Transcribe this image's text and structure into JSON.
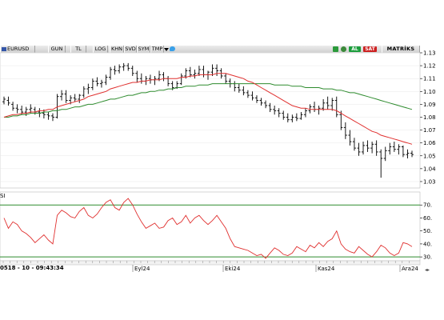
{
  "toolbar": {
    "symbol": "EURUSD",
    "buttons": [
      "GUN",
      "TL",
      "LOG",
      "KHN",
      "SVD",
      "SYM",
      "TMP"
    ],
    "al": "AL",
    "sat": "SAT",
    "matriks": "MATRİKS",
    "colors": {
      "al": "#1b9d3c",
      "sat": "#cc1f1f",
      "toolbar": "#dcdcdc"
    }
  },
  "status": {
    "text": "0518 - 10 - 09:43:34",
    "months": [
      "Eyl24",
      "Eki24",
      "Kas24",
      "Ara24"
    ]
  },
  "chart_data": [
    {
      "type": "line",
      "subtype": "ohlc-bars",
      "ylim": [
        1.025,
        1.13
      ],
      "yticks": [
        "1.13",
        "1.12",
        "1.11",
        "1.10",
        "1.09",
        "1.08",
        "1.07",
        "1.06",
        "1.05",
        "1.04",
        "1.03"
      ],
      "colors": {
        "bars": "#000000",
        "short_ma": "#e0302f",
        "long_ma": "#2e8b2e",
        "grid": "#e8e8e8"
      },
      "bars": [
        [
          1.092,
          1.096,
          1.09,
          1.094
        ],
        [
          1.093,
          1.096,
          1.089,
          1.091
        ],
        [
          1.09,
          1.092,
          1.085,
          1.087
        ],
        [
          1.087,
          1.09,
          1.083,
          1.086
        ],
        [
          1.086,
          1.089,
          1.082,
          1.084
        ],
        [
          1.084,
          1.088,
          1.081,
          1.086
        ],
        [
          1.086,
          1.09,
          1.083,
          1.087
        ],
        [
          1.086,
          1.088,
          1.082,
          1.084
        ],
        [
          1.084,
          1.087,
          1.08,
          1.083
        ],
        [
          1.083,
          1.086,
          1.079,
          1.082
        ],
        [
          1.082,
          1.084,
          1.078,
          1.081
        ],
        [
          1.081,
          1.083,
          1.077,
          1.08
        ],
        [
          1.08,
          1.098,
          1.079,
          1.096
        ],
        [
          1.096,
          1.101,
          1.093,
          1.098
        ],
        [
          1.098,
          1.101,
          1.091,
          1.093
        ],
        [
          1.093,
          1.097,
          1.09,
          1.095
        ],
        [
          1.095,
          1.098,
          1.092,
          1.094
        ],
        [
          1.094,
          1.098,
          1.091,
          1.097
        ],
        [
          1.097,
          1.104,
          1.095,
          1.102
        ],
        [
          1.102,
          1.106,
          1.098,
          1.103
        ],
        [
          1.103,
          1.11,
          1.101,
          1.108
        ],
        [
          1.108,
          1.111,
          1.104,
          1.106
        ],
        [
          1.106,
          1.109,
          1.103,
          1.107
        ],
        [
          1.107,
          1.113,
          1.105,
          1.111
        ],
        [
          1.111,
          1.119,
          1.109,
          1.117
        ],
        [
          1.117,
          1.12,
          1.113,
          1.116
        ],
        [
          1.116,
          1.121,
          1.114,
          1.119
        ],
        [
          1.119,
          1.122,
          1.116,
          1.12
        ],
        [
          1.12,
          1.122,
          1.116,
          1.118
        ],
        [
          1.118,
          1.12,
          1.112,
          1.114
        ],
        [
          1.114,
          1.116,
          1.107,
          1.11
        ],
        [
          1.11,
          1.114,
          1.106,
          1.108
        ],
        [
          1.108,
          1.112,
          1.105,
          1.11
        ],
        [
          1.11,
          1.113,
          1.106,
          1.109
        ],
        [
          1.109,
          1.112,
          1.105,
          1.11
        ],
        [
          1.11,
          1.116,
          1.108,
          1.113
        ],
        [
          1.113,
          1.115,
          1.108,
          1.11
        ],
        [
          1.11,
          1.112,
          1.104,
          1.106
        ],
        [
          1.106,
          1.108,
          1.101,
          1.103
        ],
        [
          1.103,
          1.108,
          1.102,
          1.106
        ],
        [
          1.106,
          1.114,
          1.105,
          1.112
        ],
        [
          1.112,
          1.118,
          1.11,
          1.116
        ],
        [
          1.116,
          1.119,
          1.111,
          1.113
        ],
        [
          1.113,
          1.117,
          1.11,
          1.114
        ],
        [
          1.114,
          1.12,
          1.112,
          1.117
        ],
        [
          1.117,
          1.12,
          1.111,
          1.113
        ],
        [
          1.113,
          1.116,
          1.109,
          1.115
        ],
        [
          1.115,
          1.121,
          1.112,
          1.118
        ],
        [
          1.118,
          1.121,
          1.112,
          1.116
        ],
        [
          1.116,
          1.118,
          1.11,
          1.112
        ],
        [
          1.112,
          1.114,
          1.106,
          1.108
        ],
        [
          1.108,
          1.11,
          1.103,
          1.106
        ],
        [
          1.106,
          1.108,
          1.1,
          1.103
        ],
        [
          1.103,
          1.106,
          1.099,
          1.101
        ],
        [
          1.101,
          1.104,
          1.097,
          1.099
        ],
        [
          1.099,
          1.101,
          1.095,
          1.097
        ],
        [
          1.097,
          1.1,
          1.093,
          1.095
        ],
        [
          1.095,
          1.097,
          1.091,
          1.093
        ],
        [
          1.093,
          1.095,
          1.089,
          1.091
        ],
        [
          1.091,
          1.093,
          1.087,
          1.089
        ],
        [
          1.089,
          1.091,
          1.084,
          1.086
        ],
        [
          1.086,
          1.089,
          1.082,
          1.085
        ],
        [
          1.085,
          1.087,
          1.08,
          1.083
        ],
        [
          1.083,
          1.085,
          1.078,
          1.08
        ],
        [
          1.08,
          1.083,
          1.076,
          1.078
        ],
        [
          1.078,
          1.082,
          1.076,
          1.08
        ],
        [
          1.08,
          1.083,
          1.077,
          1.079
        ],
        [
          1.079,
          1.084,
          1.078,
          1.082
        ],
        [
          1.082,
          1.087,
          1.08,
          1.085
        ],
        [
          1.085,
          1.09,
          1.083,
          1.088
        ],
        [
          1.088,
          1.092,
          1.084,
          1.086
        ],
        [
          1.086,
          1.089,
          1.082,
          1.087
        ],
        [
          1.087,
          1.094,
          1.085,
          1.091
        ],
        [
          1.091,
          1.096,
          1.086,
          1.089
        ],
        [
          1.089,
          1.095,
          1.085,
          1.093
        ],
        [
          1.093,
          1.096,
          1.08,
          1.082
        ],
        [
          1.082,
          1.085,
          1.07,
          1.072
        ],
        [
          1.072,
          1.076,
          1.063,
          1.066
        ],
        [
          1.066,
          1.07,
          1.058,
          1.061
        ],
        [
          1.061,
          1.064,
          1.054,
          1.056
        ],
        [
          1.056,
          1.06,
          1.05,
          1.053
        ],
        [
          1.053,
          1.061,
          1.051,
          1.058
        ],
        [
          1.058,
          1.062,
          1.053,
          1.056
        ],
        [
          1.056,
          1.061,
          1.052,
          1.059
        ],
        [
          1.059,
          1.062,
          1.05,
          1.053
        ],
        [
          1.053,
          1.055,
          1.033,
          1.048
        ],
        [
          1.048,
          1.057,
          1.046,
          1.054
        ],
        [
          1.054,
          1.06,
          1.051,
          1.057
        ],
        [
          1.057,
          1.061,
          1.053,
          1.055
        ],
        [
          1.055,
          1.059,
          1.051,
          1.057
        ],
        [
          1.057,
          1.058,
          1.049,
          1.051
        ],
        [
          1.051,
          1.055,
          1.048,
          1.052
        ],
        [
          1.052,
          1.054,
          1.049,
          1.051
        ]
      ],
      "ma_short": [
        1.08,
        1.081,
        1.082,
        1.082,
        1.083,
        1.083,
        1.084,
        1.084,
        1.085,
        1.085,
        1.086,
        1.086,
        1.088,
        1.089,
        1.09,
        1.091,
        1.092,
        1.093,
        1.094,
        1.096,
        1.097,
        1.098,
        1.099,
        1.1,
        1.102,
        1.103,
        1.104,
        1.105,
        1.106,
        1.107,
        1.107,
        1.108,
        1.108,
        1.109,
        1.109,
        1.109,
        1.11,
        1.11,
        1.11,
        1.11,
        1.111,
        1.111,
        1.112,
        1.112,
        1.113,
        1.113,
        1.113,
        1.113,
        1.114,
        1.114,
        1.114,
        1.113,
        1.112,
        1.111,
        1.11,
        1.108,
        1.107,
        1.105,
        1.103,
        1.101,
        1.099,
        1.097,
        1.095,
        1.093,
        1.091,
        1.089,
        1.088,
        1.087,
        1.087,
        1.086,
        1.086,
        1.086,
        1.086,
        1.086,
        1.086,
        1.085,
        1.083,
        1.081,
        1.079,
        1.077,
        1.075,
        1.073,
        1.071,
        1.069,
        1.068,
        1.066,
        1.065,
        1.064,
        1.063,
        1.062,
        1.061,
        1.06,
        1.059
      ],
      "ma_long": [
        1.08,
        1.08,
        1.081,
        1.081,
        1.082,
        1.082,
        1.083,
        1.083,
        1.083,
        1.084,
        1.084,
        1.085,
        1.085,
        1.086,
        1.086,
        1.087,
        1.088,
        1.088,
        1.089,
        1.09,
        1.09,
        1.091,
        1.092,
        1.093,
        1.094,
        1.094,
        1.095,
        1.096,
        1.097,
        1.097,
        1.098,
        1.099,
        1.099,
        1.1,
        1.1,
        1.101,
        1.101,
        1.102,
        1.102,
        1.103,
        1.103,
        1.104,
        1.104,
        1.104,
        1.105,
        1.105,
        1.105,
        1.106,
        1.106,
        1.106,
        1.106,
        1.106,
        1.106,
        1.106,
        1.106,
        1.106,
        1.106,
        1.106,
        1.106,
        1.106,
        1.106,
        1.105,
        1.105,
        1.105,
        1.105,
        1.104,
        1.104,
        1.104,
        1.103,
        1.103,
        1.103,
        1.103,
        1.102,
        1.102,
        1.102,
        1.101,
        1.101,
        1.1,
        1.099,
        1.099,
        1.098,
        1.097,
        1.096,
        1.095,
        1.094,
        1.093,
        1.092,
        1.091,
        1.09,
        1.089,
        1.088,
        1.087,
        1.086
      ]
    },
    {
      "type": "line",
      "title": "SI",
      "ylim": [
        27,
        80
      ],
      "yticks": [
        "70.",
        "60.",
        "50.",
        "40.",
        "30."
      ],
      "levels": [
        70,
        30
      ],
      "colors": {
        "line": "#e0302f",
        "levels": "#2e8b2e"
      },
      "values": [
        60,
        52,
        57,
        55,
        50,
        48,
        45,
        41,
        44,
        47,
        43,
        40,
        62,
        66,
        64,
        61,
        60,
        65,
        68,
        62,
        60,
        63,
        68,
        72,
        74,
        68,
        66,
        72,
        75,
        70,
        63,
        57,
        52,
        54,
        56,
        52,
        53,
        58,
        60,
        55,
        57,
        62,
        56,
        60,
        62,
        58,
        55,
        58,
        62,
        57,
        52,
        44,
        38,
        37,
        36,
        35,
        33,
        31,
        32,
        29,
        33,
        37,
        35,
        32,
        31,
        33,
        38,
        36,
        34,
        39,
        37,
        41,
        38,
        42,
        44,
        50,
        40,
        36,
        34,
        33,
        38,
        35,
        32,
        30,
        34,
        39,
        37,
        33,
        31,
        33,
        41,
        40,
        38
      ]
    }
  ]
}
